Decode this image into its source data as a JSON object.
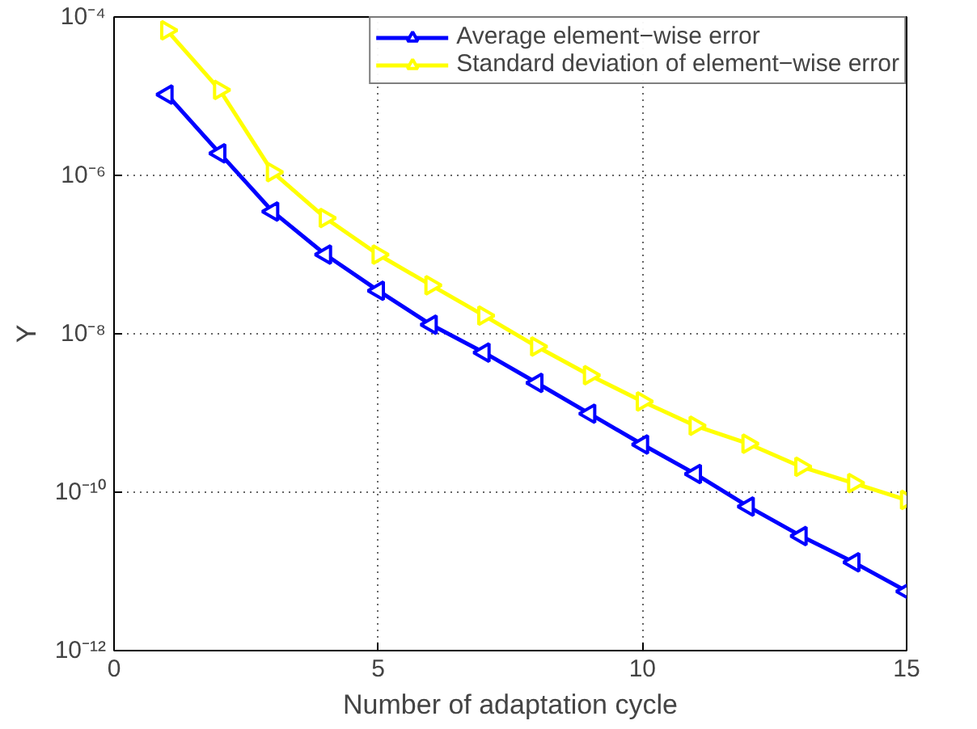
{
  "chart_data": {
    "type": "line",
    "xlabel": "Number of adaptation cycle",
    "ylabel": "Y",
    "x": [
      1,
      2,
      3,
      4,
      5,
      6,
      7,
      8,
      9,
      10,
      11,
      12,
      13,
      14,
      15
    ],
    "series": [
      {
        "name": "Average element−wise error",
        "color": "#0000ff",
        "values": [
          1.05e-05,
          1.9e-06,
          3.5e-07,
          1e-07,
          3.5e-08,
          1.3e-08,
          5.8e-09,
          2.4e-09,
          9.8e-10,
          4e-10,
          1.7e-10,
          6.6e-11,
          2.8e-11,
          1.3e-11,
          5.6e-12
        ]
      },
      {
        "name": "Standard deviation of element−wise error",
        "color": "#ffff00",
        "values": [
          6.8e-05,
          1.2e-05,
          1.1e-06,
          2.9e-07,
          1e-07,
          4.1e-08,
          1.7e-08,
          6.9e-09,
          3e-09,
          1.4e-09,
          6.9e-10,
          4.1e-10,
          2.1e-10,
          1.3e-10,
          8e-11
        ]
      }
    ],
    "log": "y",
    "xlim": [
      0,
      15
    ],
    "ylim": [
      1e-12,
      0.0001
    ],
    "xticks": [
      0,
      5,
      10,
      15
    ],
    "yticks": [
      {
        "value": 1e-12,
        "label": "10⁻¹²"
      },
      {
        "value": 1e-10,
        "label": "10⁻¹⁰"
      },
      {
        "value": 1e-08,
        "label": "10⁻⁸"
      },
      {
        "value": 1e-06,
        "label": "10⁻⁶"
      },
      {
        "value": 0.0001,
        "label": "10⁻⁴"
      }
    ],
    "grid": true,
    "legend": "top right",
    "marker": "triangle",
    "line_style": "solid"
  }
}
